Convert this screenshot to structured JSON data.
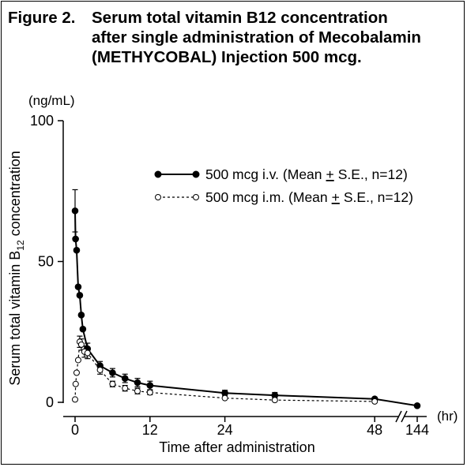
{
  "figure": {
    "number": "Figure 2.",
    "title_lines": [
      "Serum total vitamin B12 concentration",
      "after single administration of Mecobalamin",
      "(METHYCOBAL) Injection 500 mcg."
    ]
  },
  "chart_data": {
    "type": "line",
    "title": "Serum total vitamin B12 concentration after single administration of Mecobalamin (METHYCOBAL) Injection 500 mcg.",
    "ylabel": {
      "main": "Serum total vitamin B",
      "sub": "12",
      "tail": " concentration"
    },
    "yunit": "(ng/mL)",
    "xlabel": "Time after administration",
    "xunit": "(hr)",
    "ylim": [
      0,
      100
    ],
    "xlim": [
      0,
      144
    ],
    "x_axis_break": [
      48,
      144
    ],
    "yticks": [
      0,
      50,
      100
    ],
    "xticks": [
      0,
      12,
      24,
      48,
      144
    ],
    "grid": false,
    "legend_position": "upper-right",
    "series": [
      {
        "name": "500 mcg i.v. (Mean ± S.E., n=12)",
        "legend_label": "500 mcg i.v. (Mean",
        "legend_pm": "+",
        "legend_tail": "S.E., n=12)",
        "marker": "filled-circle",
        "line": "solid",
        "points": [
          {
            "x": 0,
            "y": 68,
            "err": 7.5
          },
          {
            "x": 0.08,
            "y": 58,
            "err": 0
          },
          {
            "x": 0.25,
            "y": 54,
            "err": 0
          },
          {
            "x": 0.5,
            "y": 41,
            "err": 0
          },
          {
            "x": 0.75,
            "y": 38,
            "err": 0
          },
          {
            "x": 1,
            "y": 31,
            "err": 0
          },
          {
            "x": 1.25,
            "y": 26,
            "err": 0
          },
          {
            "x": 2,
            "y": 19,
            "err": 2
          },
          {
            "x": 4,
            "y": 13,
            "err": 1.5
          },
          {
            "x": 6,
            "y": 10.5,
            "err": 1.5
          },
          {
            "x": 8,
            "y": 8.5,
            "err": 1.5
          },
          {
            "x": 10,
            "y": 7,
            "err": 1.5
          },
          {
            "x": 12,
            "y": 6,
            "err": 1.5
          },
          {
            "x": 24,
            "y": 3.3,
            "err": 1
          },
          {
            "x": 32,
            "y": 2.5,
            "err": 1
          },
          {
            "x": 48,
            "y": 1.2,
            "err": 0
          },
          {
            "x": 144,
            "y": -1.2,
            "err": 0
          }
        ]
      },
      {
        "name": "500 mcg i.m. (Mean ± S.E., n=12)",
        "legend_label": "500 mcg i.m. (Mean",
        "legend_pm": "+",
        "legend_tail": "S.E., n=12)",
        "marker": "open-circle",
        "line": "dashed",
        "points": [
          {
            "x": 0,
            "y": 1,
            "err": 0
          },
          {
            "x": 0.1,
            "y": 6.5,
            "err": 0
          },
          {
            "x": 0.25,
            "y": 10.5,
            "err": 0
          },
          {
            "x": 0.5,
            "y": 15,
            "err": 0
          },
          {
            "x": 0.75,
            "y": 21.5,
            "err": 2
          },
          {
            "x": 1,
            "y": 20.5,
            "err": 2
          },
          {
            "x": 1.5,
            "y": 18,
            "err": 2
          },
          {
            "x": 2,
            "y": 17.5,
            "err": 2
          },
          {
            "x": 4,
            "y": 11.5,
            "err": 1.5
          },
          {
            "x": 6,
            "y": 6.5,
            "err": 1
          },
          {
            "x": 8,
            "y": 5,
            "err": 1
          },
          {
            "x": 10,
            "y": 4,
            "err": 1
          },
          {
            "x": 12,
            "y": 3.5,
            "err": 0.8
          },
          {
            "x": 24,
            "y": 1.5,
            "err": 0
          },
          {
            "x": 32,
            "y": 0.8,
            "err": 0
          },
          {
            "x": 48,
            "y": 0.3,
            "err": 0
          }
        ]
      }
    ]
  }
}
